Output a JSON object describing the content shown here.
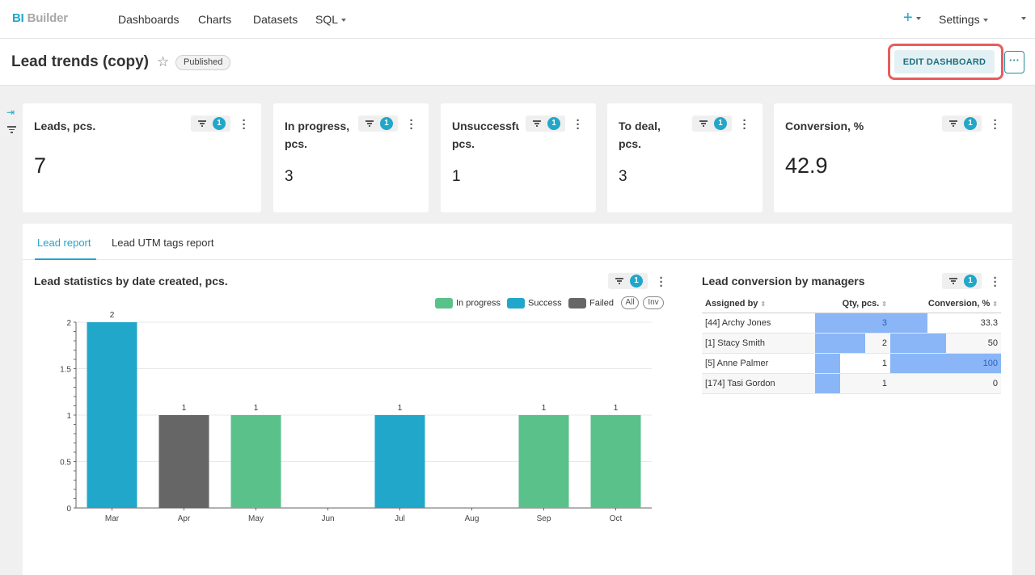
{
  "app": {
    "logo_prefix": "BI",
    "logo_rest": " Builder"
  },
  "nav": {
    "items": [
      "Dashboards",
      "Charts",
      "Datasets"
    ],
    "sql_label": "SQL",
    "plus_label": "+",
    "settings_label": "Settings"
  },
  "header": {
    "title": "Lead trends (copy)",
    "status": "Published",
    "edit_button": "EDIT DASHBOARD",
    "more_button": "···"
  },
  "kpis": [
    {
      "title": "Leads, pcs.",
      "value": "7",
      "filter_count": "1"
    },
    {
      "title": "In progress,",
      "title2": "pcs.",
      "value": "3",
      "filter_count": "1"
    },
    {
      "title": "Unsuccessful,",
      "title2": "pcs.",
      "value": "1",
      "filter_count": "1"
    },
    {
      "title": "To deal,",
      "title2": "pcs.",
      "value": "3",
      "filter_count": "1"
    },
    {
      "title": "Conversion, %",
      "value": "42.9",
      "filter_count": "1"
    }
  ],
  "tabs": [
    {
      "label": "Lead report",
      "active": true
    },
    {
      "label": "Lead UTM tags report",
      "active": false
    }
  ],
  "bar_chart": {
    "title": "Lead statistics by date created, pcs.",
    "filter_count": "1",
    "legend": [
      {
        "name": "In progress",
        "color": "#5ac18b"
      },
      {
        "name": "Success",
        "color": "#20a7c9"
      },
      {
        "name": "Failed",
        "color": "#666666"
      }
    ],
    "legend_all": "All",
    "legend_inv": "Inv"
  },
  "chart_data": {
    "type": "bar",
    "categories": [
      "Mar",
      "Apr",
      "May",
      "Jun",
      "Jul",
      "Aug",
      "Sep",
      "Oct"
    ],
    "series": [
      {
        "name": "In progress",
        "values": [
          0,
          0,
          1,
          0,
          0,
          0,
          1,
          1
        ]
      },
      {
        "name": "Success",
        "values": [
          2,
          0,
          0,
          0,
          1,
          0,
          0,
          0
        ]
      },
      {
        "name": "Failed",
        "values": [
          0,
          1,
          0,
          0,
          0,
          0,
          0,
          0
        ]
      }
    ],
    "data_labels": [
      "2",
      "1",
      "1",
      "",
      "1",
      "",
      "1",
      "1"
    ],
    "ylim": [
      0,
      2
    ],
    "yticks": [
      "0",
      "0.5",
      "1",
      "1.5",
      "2"
    ],
    "title": "Lead statistics by date created, pcs.",
    "xlabel": "",
    "ylabel": ""
  },
  "table": {
    "title": "Lead conversion by managers",
    "filter_count": "1",
    "columns": [
      "Assigned by",
      "Qty, pcs.",
      "Conversion, %"
    ],
    "rows": [
      {
        "name": "[44] Archy Jones",
        "qty": "3",
        "qty_frac": 1.0,
        "conv": "33.3",
        "conv_frac": 0.333
      },
      {
        "name": "[1] Stacy Smith",
        "qty": "2",
        "qty_frac": 0.667,
        "conv": "50",
        "conv_frac": 0.5
      },
      {
        "name": "[5] Anne Palmer",
        "qty": "1",
        "qty_frac": 0.333,
        "conv": "100",
        "conv_frac": 1.0
      },
      {
        "name": "[174] Tasi Gordon",
        "qty": "1",
        "qty_frac": 0.333,
        "conv": "0",
        "conv_frac": 0
      }
    ]
  }
}
